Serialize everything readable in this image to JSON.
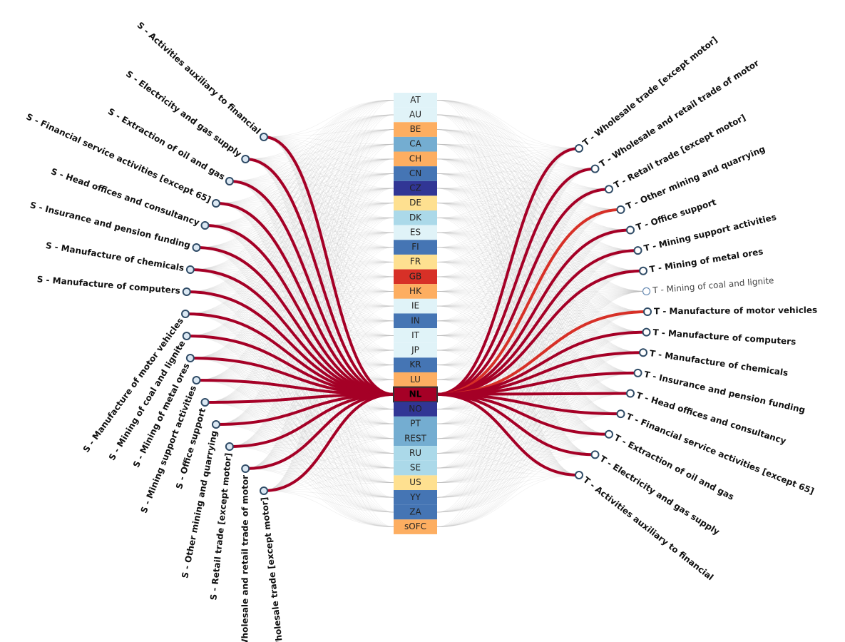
{
  "countries": [
    {
      "code": "AT",
      "color": "#e0f3f8"
    },
    {
      "code": "AU",
      "color": "#e0f3f8"
    },
    {
      "code": "BE",
      "color": "#fdae61"
    },
    {
      "code": "CA",
      "color": "#74add1"
    },
    {
      "code": "CH",
      "color": "#fdae61"
    },
    {
      "code": "CN",
      "color": "#4575b4"
    },
    {
      "code": "CZ",
      "color": "#313695"
    },
    {
      "code": "DE",
      "color": "#fee090"
    },
    {
      "code": "DK",
      "color": "#abd9e9"
    },
    {
      "code": "ES",
      "color": "#e0f3f8"
    },
    {
      "code": "FI",
      "color": "#4575b4"
    },
    {
      "code": "FR",
      "color": "#fee090"
    },
    {
      "code": "GB",
      "color": "#d73027"
    },
    {
      "code": "HK",
      "color": "#fdae61"
    },
    {
      "code": "IE",
      "color": "#e0f3f8"
    },
    {
      "code": "IN",
      "color": "#4575b4"
    },
    {
      "code": "IT",
      "color": "#e0f3f8"
    },
    {
      "code": "JP",
      "color": "#e0f3f8"
    },
    {
      "code": "KR",
      "color": "#4575b4"
    },
    {
      "code": "LU",
      "color": "#fdae61"
    },
    {
      "code": "NL",
      "color": "#a50026",
      "selected": true
    },
    {
      "code": "NO",
      "color": "#313695"
    },
    {
      "code": "PT",
      "color": "#74add1"
    },
    {
      "code": "REST",
      "color": "#74add1"
    },
    {
      "code": "RU",
      "color": "#abd9e9"
    },
    {
      "code": "SE",
      "color": "#abd9e9"
    },
    {
      "code": "US",
      "color": "#fee090"
    },
    {
      "code": "YY",
      "color": "#4575b4"
    },
    {
      "code": "ZA",
      "color": "#4575b4"
    },
    {
      "code": "sOFC",
      "color": "#fdae61"
    }
  ],
  "left_nodes": [
    {
      "label": "S - Activities auxiliary to financial"
    },
    {
      "label": "S - Electricity and gas supply"
    },
    {
      "label": "S - Extraction of oil and gas"
    },
    {
      "label": "S - Financial service activities [except 65]"
    },
    {
      "label": "S - Head offices and consultancy"
    },
    {
      "label": "S - Insurance and pension funding"
    },
    {
      "label": "S - Manufacture of chemicals"
    },
    {
      "label": "S - Manufacture of computers"
    },
    {
      "label": "S - Manufacture of motor vehicles"
    },
    {
      "label": "S - Mining of coal and lignite"
    },
    {
      "label": "S - Mining of metal ores"
    },
    {
      "label": "S - Mining support activities"
    },
    {
      "label": "S - Office support"
    },
    {
      "label": "S - Other mining and quarrying"
    },
    {
      "label": "S - Retail trade [except motor]"
    },
    {
      "label": "S - Wholesale and retail trade of motor"
    },
    {
      "label": "S - Wholesale trade [except motor]"
    }
  ],
  "right_nodes": [
    {
      "label": "T - Wholesale trade [except motor]"
    },
    {
      "label": "T - Wholesale and retail trade of motor"
    },
    {
      "label": "T - Retail trade [except motor]"
    },
    {
      "label": "T - Other mining and quarrying",
      "link_color": "#d73027"
    },
    {
      "label": "T - Office support"
    },
    {
      "label": "T - Mining support activities"
    },
    {
      "label": "T - Mining of metal ores"
    },
    {
      "label": "T - Mining of coal and lignite",
      "active": false
    },
    {
      "label": "T - Manufacture of motor vehicles",
      "link_color": "#d73027"
    },
    {
      "label": "T - Manufacture of computers"
    },
    {
      "label": "T - Manufacture of chemicals"
    },
    {
      "label": "T - Insurance and pension funding"
    },
    {
      "label": "T - Head offices and consultancy"
    },
    {
      "label": "T - Financial service activities [except 65]"
    },
    {
      "label": "T - Extraction of oil and gas"
    },
    {
      "label": "T - Electricity and gas supply"
    },
    {
      "label": "T - Activities auxiliary to financial"
    }
  ],
  "link_color": "#a50026"
}
